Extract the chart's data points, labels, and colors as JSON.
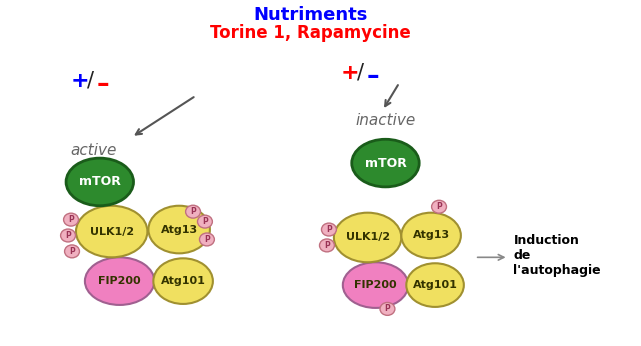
{
  "title1": "Nutriments",
  "title2": "Torine 1, Rapamycine",
  "title1_color": "blue",
  "title2_color": "red",
  "label_active": "active",
  "label_inactive": "inactive",
  "label_autophagie": "Induction\nde\nl'autophagie",
  "color_mtor": "#2d8a2d",
  "color_mtor_edge": "#1a5c1a",
  "color_ulk": "#f0e060",
  "color_atg13": "#f0e060",
  "color_fip200": "#f080c0",
  "color_atg101": "#f0e060",
  "color_p_fill": "#f0b0c0",
  "color_p_edge": "#c07080",
  "color_ellipse_edge": "#a09030",
  "color_fip_edge": "#a06090",
  "bg_color": "white",
  "arrow_color": "#555555",
  "plus_minus_color_left": "blue",
  "plus_minus_color_right": "red",
  "text_color_active": "#666666",
  "text_color_labels": "#333300"
}
